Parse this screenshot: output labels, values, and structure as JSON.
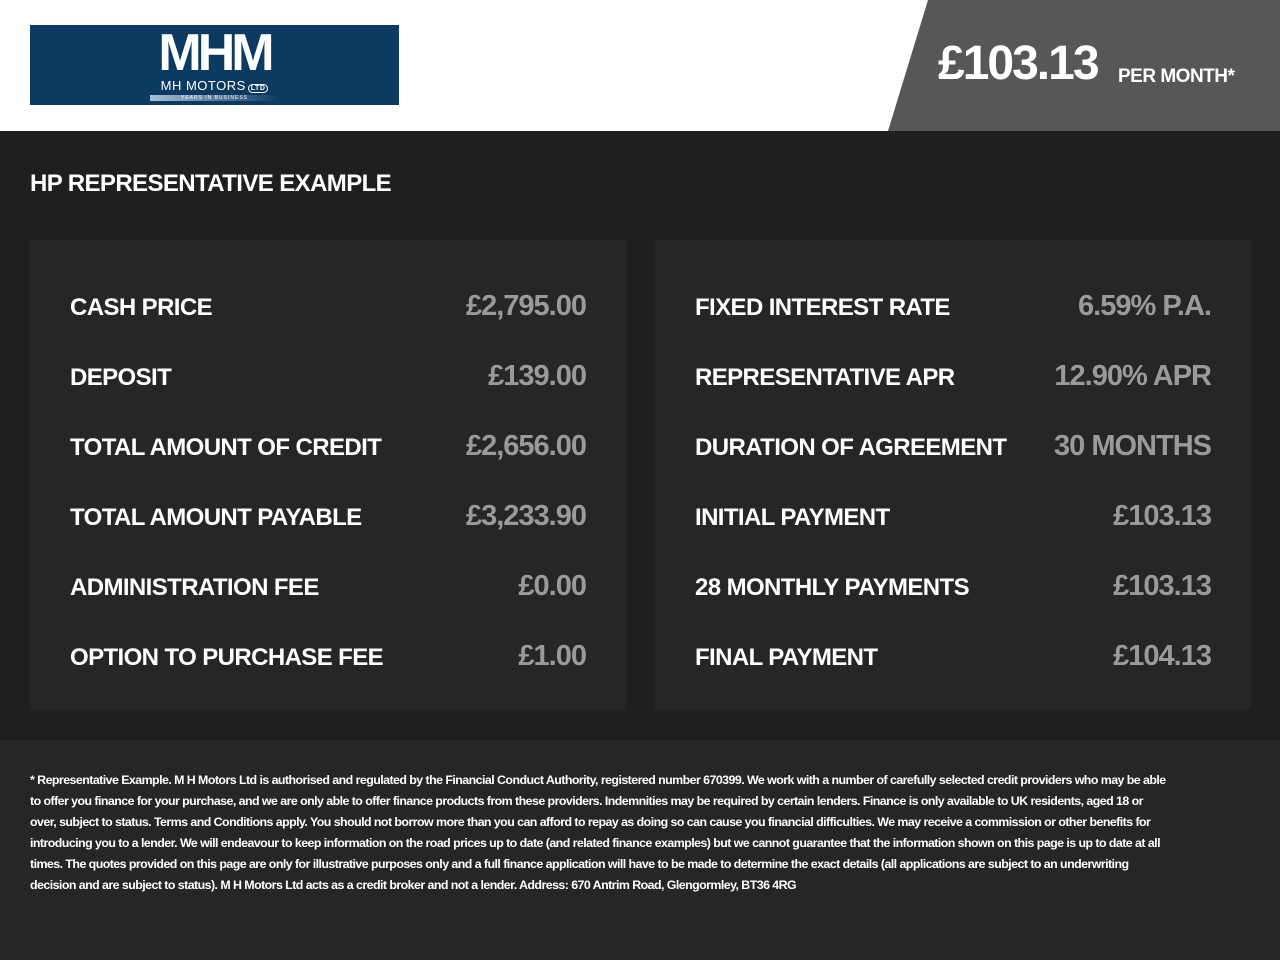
{
  "header": {
    "logo": {
      "initials": "MHM",
      "name": "MH MOTORS",
      "suffix": "LTD",
      "tagline": "YEARS IN BUSINESS"
    },
    "price": "£103.13",
    "price_suffix": "PER MONTH*"
  },
  "title": "HP REPRESENTATIVE EXAMPLE",
  "left_items": [
    {
      "label": "CASH PRICE",
      "value": "£2,795.00"
    },
    {
      "label": "DEPOSIT",
      "value": "£139.00"
    },
    {
      "label": "TOTAL AMOUNT OF CREDIT",
      "value": "£2,656.00"
    },
    {
      "label": "TOTAL AMOUNT PAYABLE",
      "value": "£3,233.90"
    },
    {
      "label": "ADMINISTRATION FEE",
      "value": "£0.00"
    },
    {
      "label": "OPTION TO PURCHASE FEE",
      "value": "£1.00"
    }
  ],
  "right_items": [
    {
      "label": "FIXED INTEREST RATE",
      "value": "6.59% P.A."
    },
    {
      "label": "REPRESENTATIVE APR",
      "value": "12.90% APR"
    },
    {
      "label": "DURATION OF AGREEMENT",
      "value": "30 MONTHS"
    },
    {
      "label": "INITIAL PAYMENT",
      "value": "£103.13"
    },
    {
      "label": "28 MONTHLY PAYMENTS",
      "value": "£103.13"
    },
    {
      "label": "FINAL PAYMENT",
      "value": "£104.13"
    }
  ],
  "disclaimer": "* Representative Example. M H Motors Ltd is authorised and regulated by the Financial Conduct Authority, registered number 670399. We work with a number of carefully selected credit providers who may be able to offer you finance for your purchase, and we are only able to offer finance products from these providers. Indemnities may be required by certain lenders. Finance is only available to UK residents, aged 18 or over, subject to status. Terms and Conditions apply. You should not borrow more than you can afford to repay as doing so can cause you financial difficulties. We may receive a commission or other benefits for introducing you to a lender. We will endeavour to keep information on the road prices up to date (and related finance examples) but we cannot guarantee that the information shown on this page is up to date at all times. The quotes provided on this page are only for illustrative purposes only and a full finance application will have to be made to determine the exact details (all applications are subject to an underwriting decision and are subject to status). M H Motors Ltd acts as a credit broker and not a lender. Address: 670 Antrim Road, Glengormley, BT36 4RG",
  "colors": {
    "logo_bg": "#0d3a60",
    "badge_bg": "#575757",
    "panel_bg": "#262626",
    "value_text": "#9a9a9a"
  }
}
